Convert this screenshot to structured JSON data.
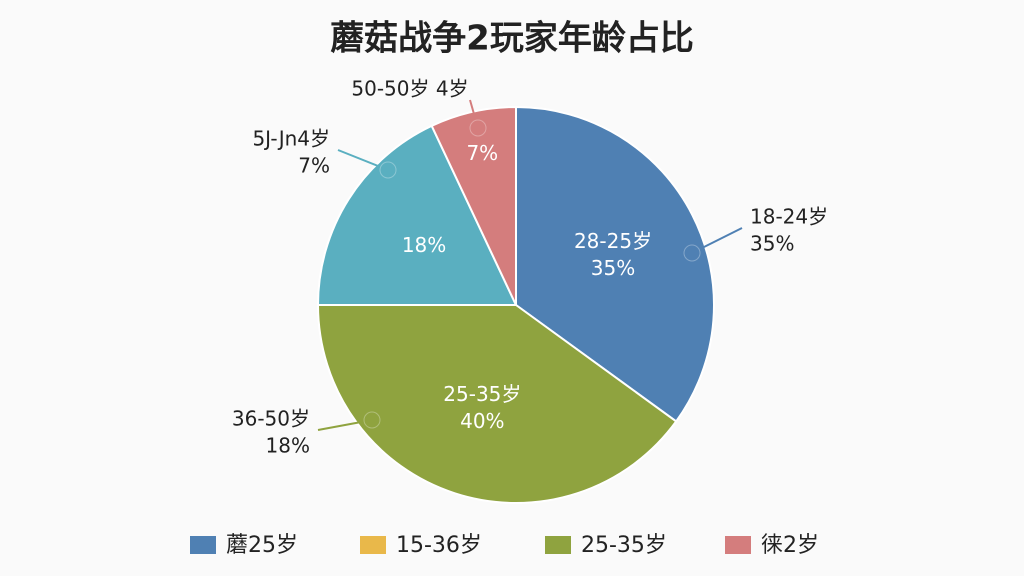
{
  "chart_data": {
    "type": "pie",
    "title": "蘑菇战争2玩家年龄占比",
    "series": [
      {
        "values": [
          35,
          40,
          18,
          7
        ],
        "value_labels": [
          "35%",
          "40%",
          "18%",
          "7%"
        ],
        "labels": [
          "28-25岁",
          "25-35岁",
          null,
          null
        ],
        "colors": [
          "#4f80b3",
          "#8fa33f",
          "#5aafc0",
          "#d47d7d"
        ]
      }
    ],
    "annotations": [
      [
        "18-24岁",
        "35%"
      ],
      [
        "36-50岁",
        "18%"
      ],
      [
        "5J-Jn4岁",
        "7%"
      ],
      [
        "50-50岁 4岁"
      ]
    ],
    "legend": [
      {
        "name": "蘑25岁",
        "color": "#4f80b3"
      },
      {
        "name": "15-36岁",
        "color": "#e9b84a"
      },
      {
        "name": "25-35岁",
        "color": "#8fa33f"
      },
      {
        "name": "徕2岁",
        "color": "#d47d7d"
      }
    ]
  }
}
